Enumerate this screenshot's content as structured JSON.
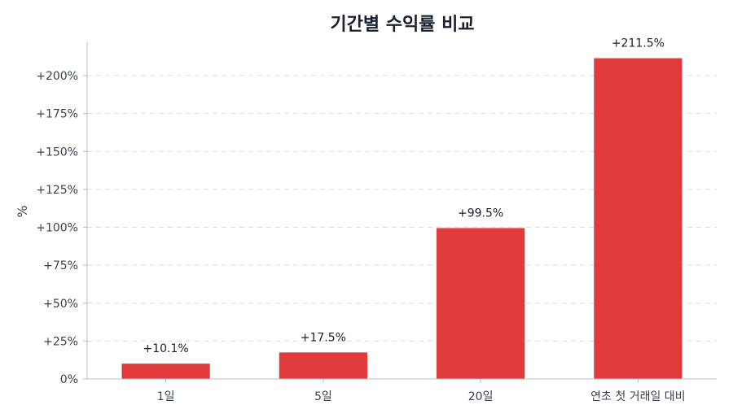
{
  "chart_data": {
    "type": "bar",
    "title": "기간별 수익률 비교",
    "xlabel": "",
    "ylabel": "%",
    "categories": [
      "1일",
      "5일",
      "20일",
      "연초 첫 거래일 대비"
    ],
    "values": [
      10.1,
      17.5,
      99.5,
      211.5
    ],
    "value_labels": [
      "+10.1%",
      "+17.5%",
      "+99.5%",
      "+211.5%"
    ],
    "ylim": [
      0,
      222
    ],
    "yticks": [
      0,
      25,
      50,
      75,
      100,
      125,
      150,
      175,
      200
    ],
    "ytick_labels": [
      "0%",
      "+25%",
      "+50%",
      "+75%",
      "+100%",
      "+125%",
      "+150%",
      "+175%",
      "+200%"
    ],
    "grid": "horizontal dashed",
    "colors": {
      "bar": "#e03a3c",
      "text": "#1a1f2e"
    }
  }
}
